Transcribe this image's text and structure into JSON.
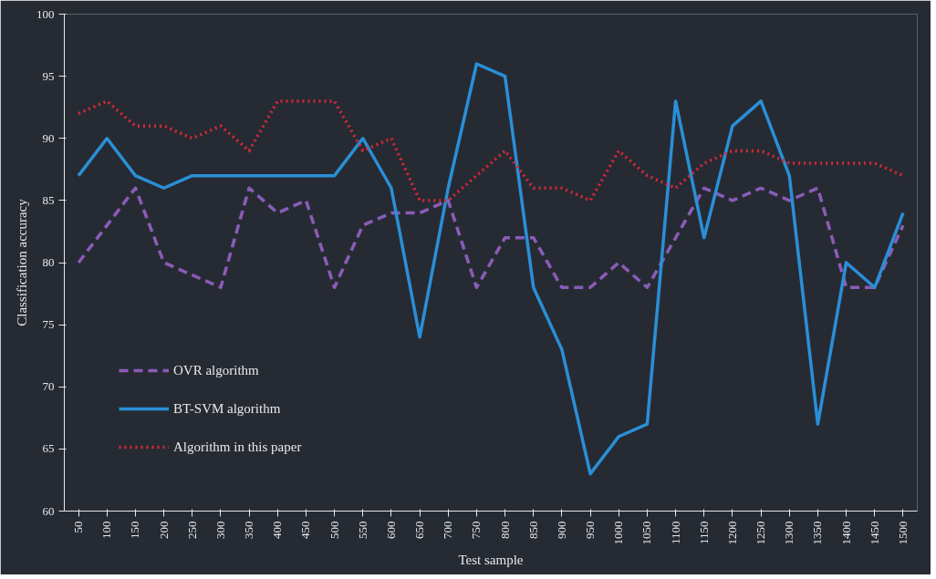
{
  "chart_data": {
    "type": "line",
    "xlabel": "Test sample",
    "ylabel": "Classification accuracy",
    "categories": [
      "50",
      "100",
      "150",
      "200",
      "250",
      "300",
      "350",
      "400",
      "450",
      "500",
      "550",
      "600",
      "650",
      "700",
      "750",
      "800",
      "850",
      "900",
      "950",
      "1000",
      "1050",
      "1100",
      "1150",
      "1200",
      "1250",
      "1300",
      "1350",
      "1400",
      "1450",
      "1500"
    ],
    "series": [
      {
        "name": "OVR algorithm",
        "color": "#8a5cb8",
        "line_style": "dashed",
        "values": [
          80,
          83,
          86,
          80,
          79,
          78,
          86,
          84,
          85,
          78,
          83,
          84,
          84,
          85,
          78,
          82,
          82,
          78,
          78,
          80,
          78,
          82,
          86,
          85,
          86,
          85,
          86,
          78,
          78,
          83
        ]
      },
      {
        "name": "BT-SVM algorithm",
        "color": "#2a8fd8",
        "line_style": "solid",
        "values": [
          87,
          90,
          87,
          86,
          87,
          87,
          87,
          87,
          87,
          87,
          90,
          86,
          74,
          86,
          96,
          95,
          78,
          73,
          63,
          66,
          67,
          93,
          82,
          91,
          93,
          87,
          67,
          80,
          78,
          84
        ]
      },
      {
        "name": "Algorithm in this paper",
        "color": "#d8283a",
        "line_style": "dotted",
        "values": [
          92,
          93,
          91,
          91,
          90,
          91,
          89,
          93,
          93,
          93,
          89,
          90,
          85,
          85,
          87,
          89,
          86,
          86,
          85,
          89,
          87,
          86,
          88,
          89,
          89,
          88,
          88,
          88,
          88,
          87
        ]
      }
    ],
    "ylim": [
      60,
      100
    ],
    "yticks": [
      60,
      65,
      70,
      75,
      80,
      85,
      90,
      95,
      100
    ],
    "grid": false,
    "legend": "bottom left"
  }
}
